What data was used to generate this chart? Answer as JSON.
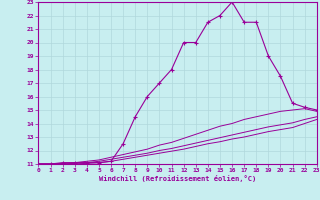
{
  "xlabel": "Windchill (Refroidissement éolien,°C)",
  "background_color": "#c8eef0",
  "grid_color": "#b0d8dc",
  "line_color": "#990099",
  "xlim": [
    0,
    23
  ],
  "ylim": [
    11,
    23
  ],
  "xticks": [
    0,
    1,
    2,
    3,
    4,
    5,
    6,
    7,
    8,
    9,
    10,
    11,
    12,
    13,
    14,
    15,
    16,
    17,
    18,
    19,
    20,
    21,
    22,
    23
  ],
  "yticks": [
    11,
    12,
    13,
    14,
    15,
    16,
    17,
    18,
    19,
    20,
    21,
    22,
    23
  ],
  "line1_x": [
    0,
    1,
    2,
    3,
    4,
    5,
    6,
    7,
    8,
    9,
    10,
    11,
    12,
    13,
    14,
    15,
    16,
    17,
    18,
    19,
    20,
    21,
    22,
    23
  ],
  "line1_y": [
    11,
    11,
    11.1,
    11.1,
    11.1,
    11.1,
    11.2,
    12.5,
    14.5,
    16.0,
    17.0,
    18.0,
    20.0,
    20.0,
    21.5,
    22.0,
    23.0,
    21.5,
    21.5,
    19.0,
    17.5,
    15.5,
    15.2,
    15.0
  ],
  "line2_x": [
    0,
    1,
    2,
    3,
    4,
    5,
    6,
    7,
    8,
    9,
    10,
    11,
    12,
    13,
    14,
    15,
    16,
    17,
    18,
    19,
    20,
    21,
    22,
    23
  ],
  "line2_y": [
    11,
    11,
    11.05,
    11.1,
    11.2,
    11.3,
    11.5,
    11.7,
    11.9,
    12.1,
    12.4,
    12.6,
    12.9,
    13.2,
    13.5,
    13.8,
    14.0,
    14.3,
    14.5,
    14.7,
    14.9,
    15.0,
    15.1,
    14.9
  ],
  "line3_x": [
    0,
    1,
    2,
    3,
    4,
    5,
    6,
    7,
    8,
    9,
    10,
    11,
    12,
    13,
    14,
    15,
    16,
    17,
    18,
    19,
    20,
    21,
    22,
    23
  ],
  "line3_y": [
    11,
    11,
    11.0,
    11.05,
    11.1,
    11.2,
    11.35,
    11.5,
    11.65,
    11.8,
    12.0,
    12.15,
    12.35,
    12.55,
    12.75,
    12.95,
    13.15,
    13.35,
    13.55,
    13.75,
    13.9,
    14.05,
    14.3,
    14.5
  ],
  "line4_x": [
    0,
    1,
    2,
    3,
    4,
    5,
    6,
    7,
    8,
    9,
    10,
    11,
    12,
    13,
    14,
    15,
    16,
    17,
    18,
    19,
    20,
    21,
    22,
    23
  ],
  "line4_y": [
    11,
    11,
    11.0,
    11.0,
    11.05,
    11.1,
    11.2,
    11.35,
    11.5,
    11.65,
    11.8,
    11.95,
    12.1,
    12.3,
    12.5,
    12.65,
    12.85,
    13.0,
    13.2,
    13.4,
    13.55,
    13.7,
    14.0,
    14.3
  ]
}
